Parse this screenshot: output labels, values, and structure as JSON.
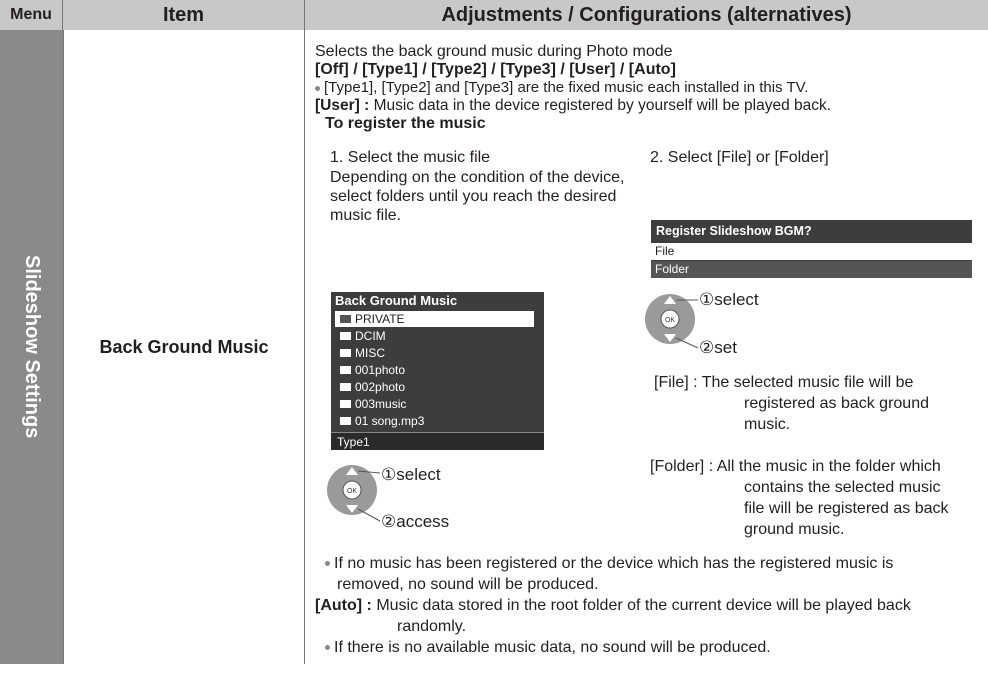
{
  "header": {
    "menu": "Menu",
    "item": "Item",
    "adjustments": "Adjustments / Configurations (alternatives)"
  },
  "menu_label": "Slideshow Settings",
  "item_label": "Back Ground Music",
  "content": {
    "intro": "Selects the back ground music during Photo mode",
    "options": "[Off] / [Type1] / [Type2] / [Type3] / [User] / [Auto]",
    "type_note": "[Type1], [Type2] and [Type3] are the fixed music each installed in this TV.",
    "user": {
      "term": "[User] :",
      "desc": "Music data in the device registered by yourself will be played back."
    },
    "register_heading": "To register the music",
    "step1": {
      "title": "1. Select the music file",
      "desc": "Depending on the condition of the device, select folders until you reach the desired music file."
    },
    "screen1": {
      "title": "Back Ground Music",
      "items": [
        "PRIVATE",
        "DCIM",
        "MISC",
        "001photo",
        "002photo",
        "003music",
        "01 song.mp3"
      ],
      "footer": "Type1"
    },
    "remote1": {
      "first": "①select",
      "second": "②access"
    },
    "step2": {
      "title": "2. Select [File] or [Folder]"
    },
    "screen2": {
      "title": "Register Slideshow BGM?",
      "items": [
        "File",
        "Folder"
      ]
    },
    "remote2": {
      "first": "①select",
      "second": "②set"
    },
    "file": {
      "term": "[File] :",
      "desc": "The selected music file will be registered as back ground music."
    },
    "folder": {
      "term": "[Folder] :",
      "desc": "All the music in the folder which contains the selected music file will be registered as back ground music."
    },
    "note1": "If no music has been registered or the device which has the registered music is removed, no sound will be produced.",
    "auto": {
      "term": "[Auto] :",
      "desc": "Music data stored in the root folder of the current device will be played back randomly."
    },
    "note2": "If there is no available music data, no sound will be produced."
  }
}
